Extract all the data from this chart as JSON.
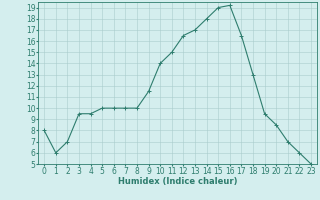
{
  "x": [
    0,
    1,
    2,
    3,
    4,
    5,
    6,
    7,
    8,
    9,
    10,
    11,
    12,
    13,
    14,
    15,
    16,
    17,
    18,
    19,
    20,
    21,
    22,
    23
  ],
  "y": [
    8,
    6,
    7,
    9.5,
    9.5,
    10,
    10,
    10,
    10,
    11.5,
    14,
    15,
    16.5,
    17,
    18,
    19,
    19.2,
    16.5,
    13,
    9.5,
    8.5,
    7,
    6,
    5
  ],
  "line_color": "#2e7d6e",
  "marker": "+",
  "marker_color": "#2e7d6e",
  "bg_color": "#d4eeee",
  "grid_color": "#aacccc",
  "xlabel": "Humidex (Indice chaleur)",
  "xlabel_fontsize": 6,
  "tick_fontsize": 5.5,
  "ylim": [
    5,
    19.5
  ],
  "xlim": [
    -0.5,
    23.5
  ],
  "yticks": [
    5,
    6,
    7,
    8,
    9,
    10,
    11,
    12,
    13,
    14,
    15,
    16,
    17,
    18,
    19
  ],
  "xticks": [
    0,
    1,
    2,
    3,
    4,
    5,
    6,
    7,
    8,
    9,
    10,
    11,
    12,
    13,
    14,
    15,
    16,
    17,
    18,
    19,
    20,
    21,
    22,
    23
  ]
}
